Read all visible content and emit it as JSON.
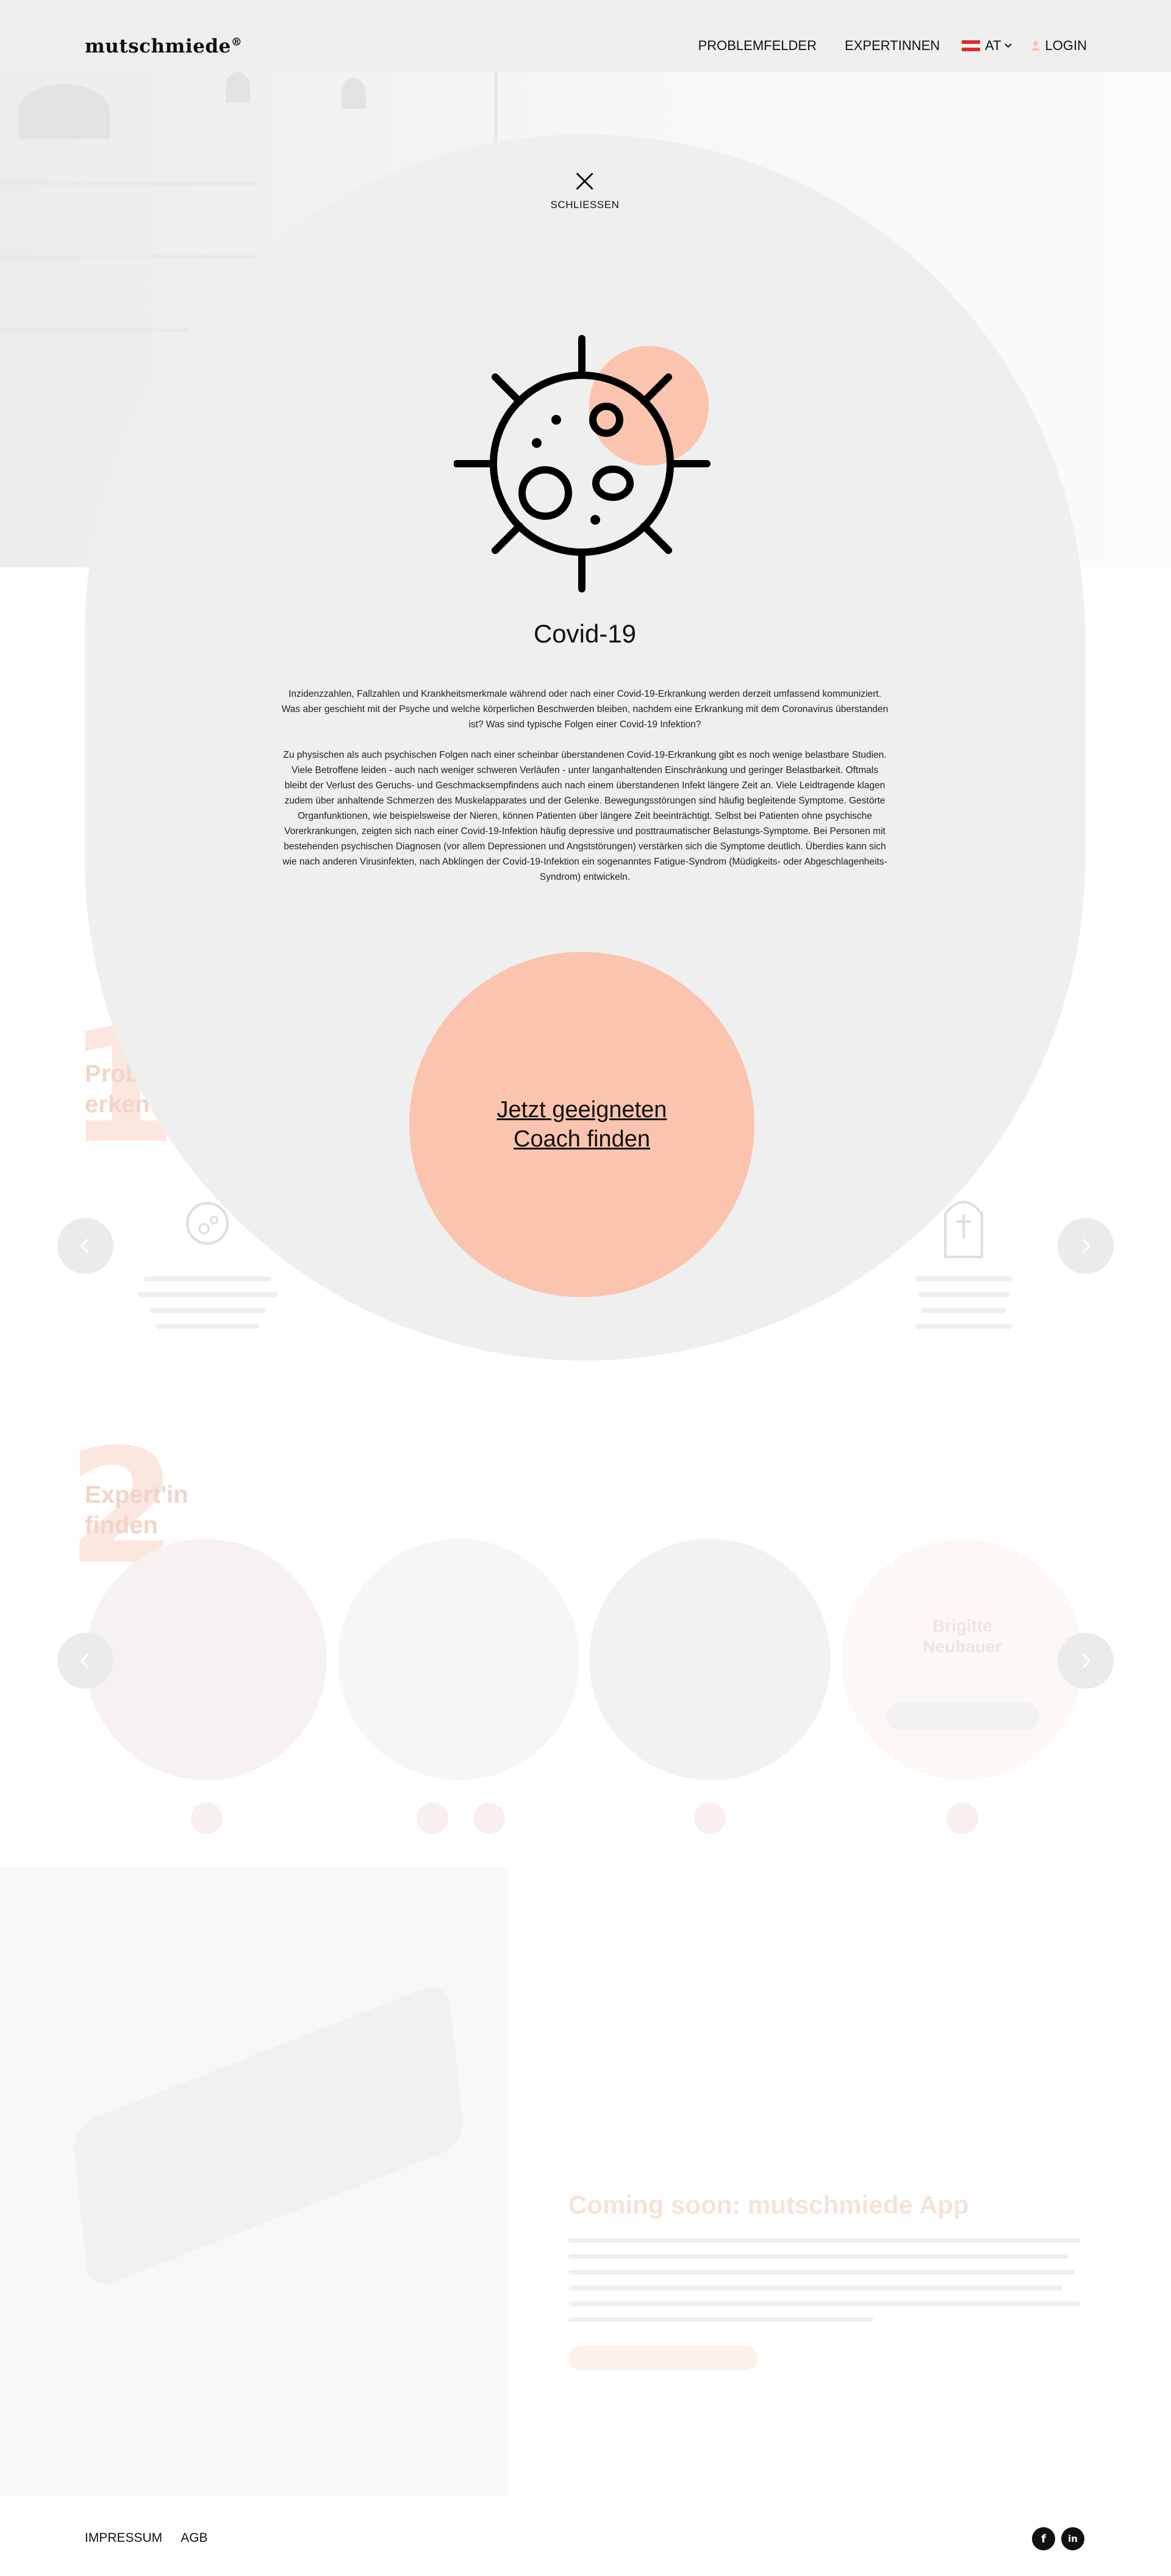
{
  "header": {
    "logo": "mutschmiede",
    "logo_mark": "®",
    "nav": [
      "PROBLEMFELDER",
      "EXPERTINNEN"
    ],
    "language": "AT",
    "login": "LOGIN"
  },
  "modal": {
    "close_label": "SCHLIESSEN",
    "title": "Covid-19",
    "paragraphs": [
      "Inzidenzzahlen, Fallzahlen und Krankheitsmerkmale während oder nach einer Covid-19-Erkrankung werden derzeit umfassend kommuniziert. Was aber geschieht mit der Psyche und welche körperlichen Beschwerden bleiben, nachdem eine Erkrankung mit dem Coronavirus überstanden ist? Was sind typische Folgen einer Covid-19 Infektion?",
      "Zu physischen als auch psychischen Folgen nach einer scheinbar überstandenen Covid-19-Erkrankung gibt es noch wenige belastbare Studien. Viele Betroffene leiden - auch nach weniger schweren Verläufen - unter langanhaltenden Einschränkung und geringer Belastbarkeit. Oftmals bleibt der Verlust des Geruchs- und Geschmacksempfindens auch nach einem überstandenen Infekt längere Zeit an. Viele Leidtragende klagen zudem über anhaltende Schmerzen des Muskelapparates und der Gelenke. Bewegungsstörungen sind häufig begleitende Symptome. Gestörte Organfunktionen, wie beispielsweise der Nieren, können Patienten über längere Zeit beeinträchtigt. Selbst bei Patienten ohne psychische Vorerkrankungen, zeigten sich nach einer Covid-19-Infektion häufig depressive und posttraumatischer Belastungs-Symptome. Bei Personen mit bestehenden psychischen Diagnosen (vor allem Depressionen und Angststörungen) verstärken sich die Symptome deutlich. Überdies kann sich wie nach anderen Virusinfekten, nach Abklingen der Covid-19-Infektion ein sogenanntes Fatigue-Syndrom (Müdigkeits- oder Abgeschlagenheits-Syndrom) entwickeln."
    ],
    "cta": "Jetzt geeigneten Coach finden"
  },
  "background": {
    "section1_number": "1",
    "section1_heading_line1": "Prob",
    "section1_heading_line2": "erken",
    "section2_number": "2",
    "section2_heading_line1": "Expert'in",
    "section2_heading_line2": "finden",
    "expert_name_line1": "Brigitte",
    "expert_name_line2": "Neubauer",
    "app_title": "Coming soon: mutschmiede App"
  },
  "footer": {
    "links": [
      "IMPRESSUM",
      "AGB"
    ],
    "social": [
      "f",
      "in"
    ]
  },
  "colors": {
    "accent": "#fbc4af",
    "modal_bg": "#efefef",
    "header_bg": "#efefef"
  }
}
